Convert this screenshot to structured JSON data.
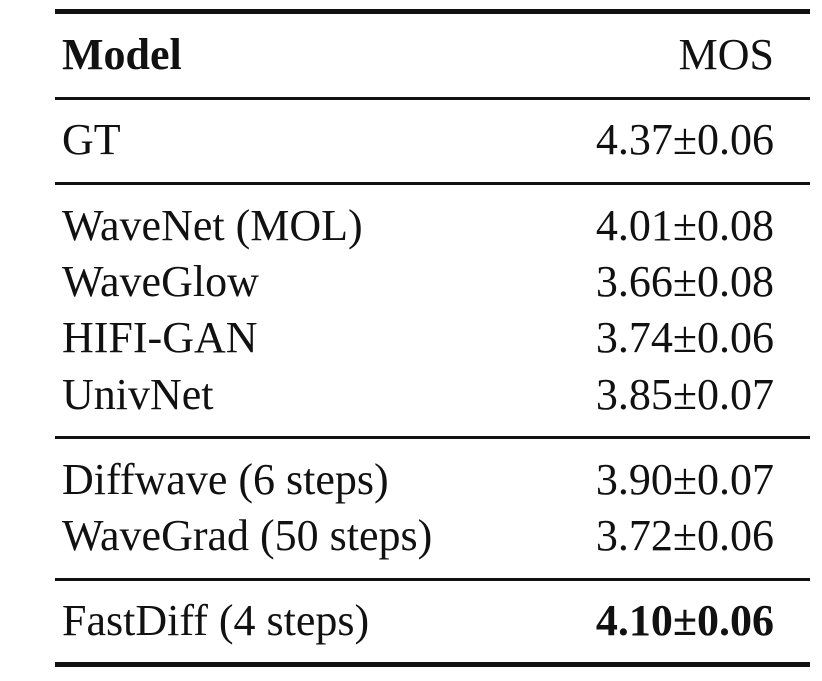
{
  "table": {
    "headers": {
      "model": "Model",
      "mos": "MOS"
    },
    "groups": [
      {
        "rows": [
          {
            "model": "GT",
            "mos": "4.37±0.06",
            "bold": false
          }
        ]
      },
      {
        "rows": [
          {
            "model": "WaveNet (MOL)",
            "mos": "4.01±0.08",
            "bold": false
          },
          {
            "model": "WaveGlow",
            "mos": "3.66±0.08",
            "bold": false
          },
          {
            "model": "HIFI-GAN",
            "mos": "3.74±0.06",
            "bold": false
          },
          {
            "model": "UnivNet",
            "mos": "3.85±0.07",
            "bold": false
          }
        ]
      },
      {
        "rows": [
          {
            "model": "Diffwave (6 steps)",
            "mos": "3.90±0.07",
            "bold": false
          },
          {
            "model": "WaveGrad (50 steps)",
            "mos": "3.72±0.06",
            "bold": false
          }
        ]
      },
      {
        "rows": [
          {
            "model": "FastDiff (4 steps)",
            "mos": "4.10±0.06",
            "bold": true
          }
        ]
      }
    ]
  }
}
